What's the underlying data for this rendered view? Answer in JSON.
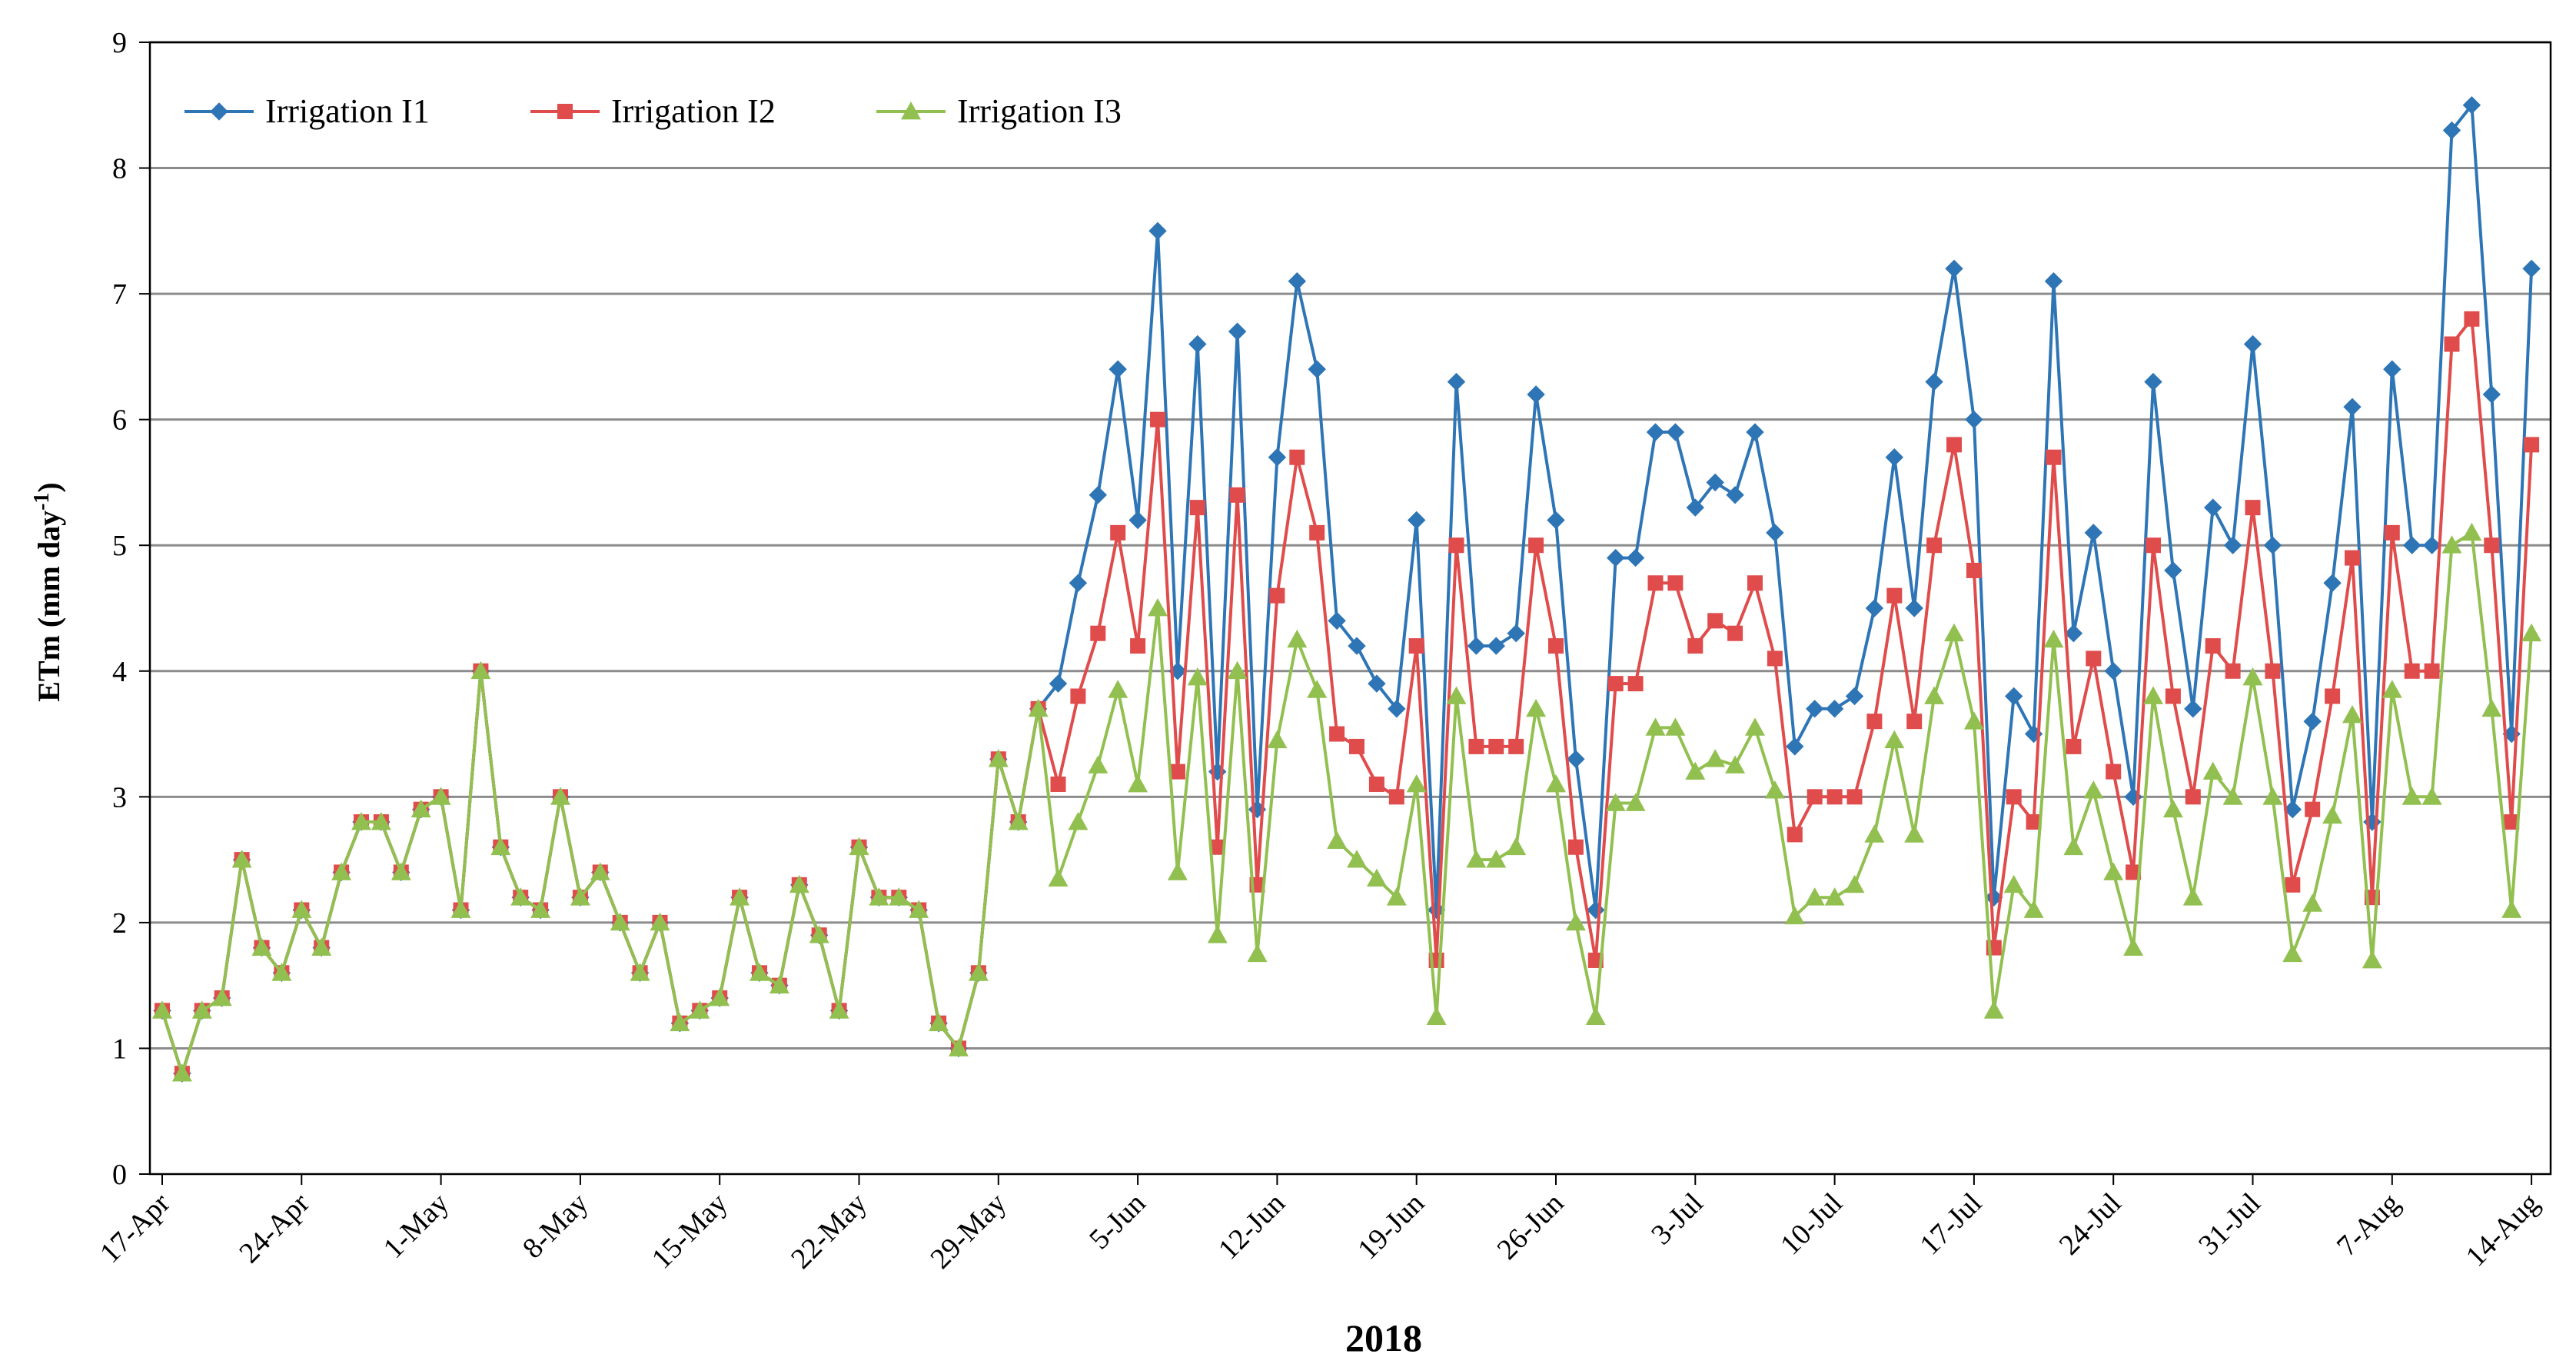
{
  "chart_data": {
    "type": "line",
    "title": "",
    "xlabel": "2018",
    "ylabel": "ETm (mm day-1)",
    "ylabel_parts": {
      "main": "ETm (mm day",
      "sup": "-1",
      "close": ")"
    },
    "ylim": [
      0,
      9
    ],
    "yticks": [
      0,
      1,
      2,
      3,
      4,
      5,
      6,
      7,
      8,
      9
    ],
    "grid": true,
    "legend_position": "top-left",
    "start_date": "17-Apr",
    "num_days": 121,
    "x_ticks": [
      {
        "label": "17-Apr",
        "day": 0
      },
      {
        "label": "24-Apr",
        "day": 7
      },
      {
        "label": "1-May",
        "day": 14
      },
      {
        "label": "8-May",
        "day": 21
      },
      {
        "label": "15-May",
        "day": 28
      },
      {
        "label": "22-May",
        "day": 35
      },
      {
        "label": "29-May",
        "day": 42
      },
      {
        "label": "5-Jun",
        "day": 49
      },
      {
        "label": "12-Jun",
        "day": 56
      },
      {
        "label": "19-Jun",
        "day": 63
      },
      {
        "label": "26-Jun",
        "day": 70
      },
      {
        "label": "3-Jul",
        "day": 77
      },
      {
        "label": "10-Jul",
        "day": 84
      },
      {
        "label": "17-Jul",
        "day": 91
      },
      {
        "label": "24-Jul",
        "day": 98
      },
      {
        "label": "31-Jul",
        "day": 105
      },
      {
        "label": "7-Aug",
        "day": 112
      },
      {
        "label": "14-Aug",
        "day": 119
      }
    ],
    "series": [
      {
        "name": "Irrigation I1",
        "color": "#2E75B6",
        "marker": "diamond",
        "values": [
          1.3,
          0.8,
          1.3,
          1.4,
          2.5,
          1.8,
          1.6,
          2.1,
          1.8,
          2.4,
          2.8,
          2.8,
          2.4,
          2.9,
          3.0,
          2.1,
          4.0,
          2.6,
          2.2,
          2.1,
          3.0,
          2.2,
          2.4,
          2.0,
          1.6,
          2.0,
          1.2,
          1.3,
          1.4,
          2.2,
          1.6,
          1.5,
          2.3,
          1.9,
          1.3,
          2.6,
          2.2,
          2.2,
          2.1,
          1.2,
          1.0,
          1.6,
          3.3,
          2.8,
          3.7,
          3.9,
          4.7,
          5.4,
          6.4,
          5.2,
          7.5,
          4.0,
          6.6,
          3.2,
          6.7,
          2.9,
          5.7,
          7.1,
          6.4,
          4.4,
          4.2,
          3.9,
          3.7,
          5.2,
          2.1,
          6.3,
          4.2,
          4.2,
          4.3,
          6.2,
          5.2,
          3.3,
          2.1,
          4.9,
          4.9,
          5.9,
          5.9,
          5.3,
          5.5,
          5.4,
          5.9,
          5.1,
          3.4,
          3.7,
          3.7,
          3.8,
          4.5,
          5.7,
          4.5,
          6.3,
          7.2,
          6.0,
          2.2,
          3.8,
          3.5,
          7.1,
          4.3,
          5.1,
          4.0,
          3.0,
          6.3,
          4.8,
          3.7,
          5.3,
          5.0,
          6.6,
          5.0,
          2.9,
          3.6,
          4.7,
          6.1,
          2.8,
          6.4,
          5.0,
          5.0,
          8.3,
          8.5,
          6.2,
          3.5,
          7.2
        ]
      },
      {
        "name": "Irrigation I2",
        "color": "#E04B4B",
        "marker": "square",
        "values": [
          1.3,
          0.8,
          1.3,
          1.4,
          2.5,
          1.8,
          1.6,
          2.1,
          1.8,
          2.4,
          2.8,
          2.8,
          2.4,
          2.9,
          3.0,
          2.1,
          4.0,
          2.6,
          2.2,
          2.1,
          3.0,
          2.2,
          2.4,
          2.0,
          1.6,
          2.0,
          1.2,
          1.3,
          1.4,
          2.2,
          1.6,
          1.5,
          2.3,
          1.9,
          1.3,
          2.6,
          2.2,
          2.2,
          2.1,
          1.2,
          1.0,
          1.6,
          3.3,
          2.8,
          3.7,
          3.1,
          3.8,
          4.3,
          5.1,
          4.2,
          6.0,
          3.2,
          5.3,
          2.6,
          5.4,
          2.3,
          4.6,
          5.7,
          5.1,
          3.5,
          3.4,
          3.1,
          3.0,
          4.2,
          1.7,
          5.0,
          3.4,
          3.4,
          3.4,
          5.0,
          4.2,
          2.6,
          1.7,
          3.9,
          3.9,
          4.7,
          4.7,
          4.2,
          4.4,
          4.3,
          4.7,
          4.1,
          2.7,
          3.0,
          3.0,
          3.0,
          3.6,
          4.6,
          3.6,
          5.0,
          5.8,
          4.8,
          1.8,
          3.0,
          2.8,
          5.7,
          3.4,
          4.1,
          3.2,
          2.4,
          5.0,
          3.8,
          3.0,
          4.2,
          4.0,
          5.3,
          4.0,
          2.3,
          2.9,
          3.8,
          4.9,
          2.2,
          5.1,
          4.0,
          4.0,
          6.6,
          6.8,
          5.0,
          2.8,
          5.8
        ]
      },
      {
        "name": "Irrigation I3",
        "color": "#92C050",
        "marker": "triangle",
        "values": [
          1.3,
          0.8,
          1.3,
          1.4,
          2.5,
          1.8,
          1.6,
          2.1,
          1.8,
          2.4,
          2.8,
          2.8,
          2.4,
          2.9,
          3.0,
          2.1,
          4.0,
          2.6,
          2.2,
          2.1,
          3.0,
          2.2,
          2.4,
          2.0,
          1.6,
          2.0,
          1.2,
          1.3,
          1.4,
          2.2,
          1.6,
          1.5,
          2.3,
          1.9,
          1.3,
          2.6,
          2.2,
          2.2,
          2.1,
          1.2,
          1.0,
          1.6,
          3.3,
          2.8,
          3.7,
          2.35,
          2.8,
          3.25,
          3.85,
          3.1,
          4.5,
          2.4,
          3.95,
          1.9,
          4.0,
          1.75,
          3.45,
          4.25,
          3.85,
          2.65,
          2.5,
          2.35,
          2.2,
          3.1,
          1.25,
          3.8,
          2.5,
          2.5,
          2.6,
          3.7,
          3.1,
          2.0,
          1.25,
          2.95,
          2.95,
          3.55,
          3.55,
          3.2,
          3.3,
          3.25,
          3.55,
          3.05,
          2.05,
          2.2,
          2.2,
          2.3,
          2.7,
          3.45,
          2.7,
          3.8,
          4.3,
          3.6,
          1.3,
          2.3,
          2.1,
          4.25,
          2.6,
          3.05,
          2.4,
          1.8,
          3.8,
          2.9,
          2.2,
          3.2,
          3.0,
          3.95,
          3.0,
          1.75,
          2.15,
          2.85,
          3.65,
          1.7,
          3.85,
          3.0,
          3.0,
          5.0,
          5.1,
          3.7,
          2.1,
          4.3
        ]
      }
    ]
  }
}
